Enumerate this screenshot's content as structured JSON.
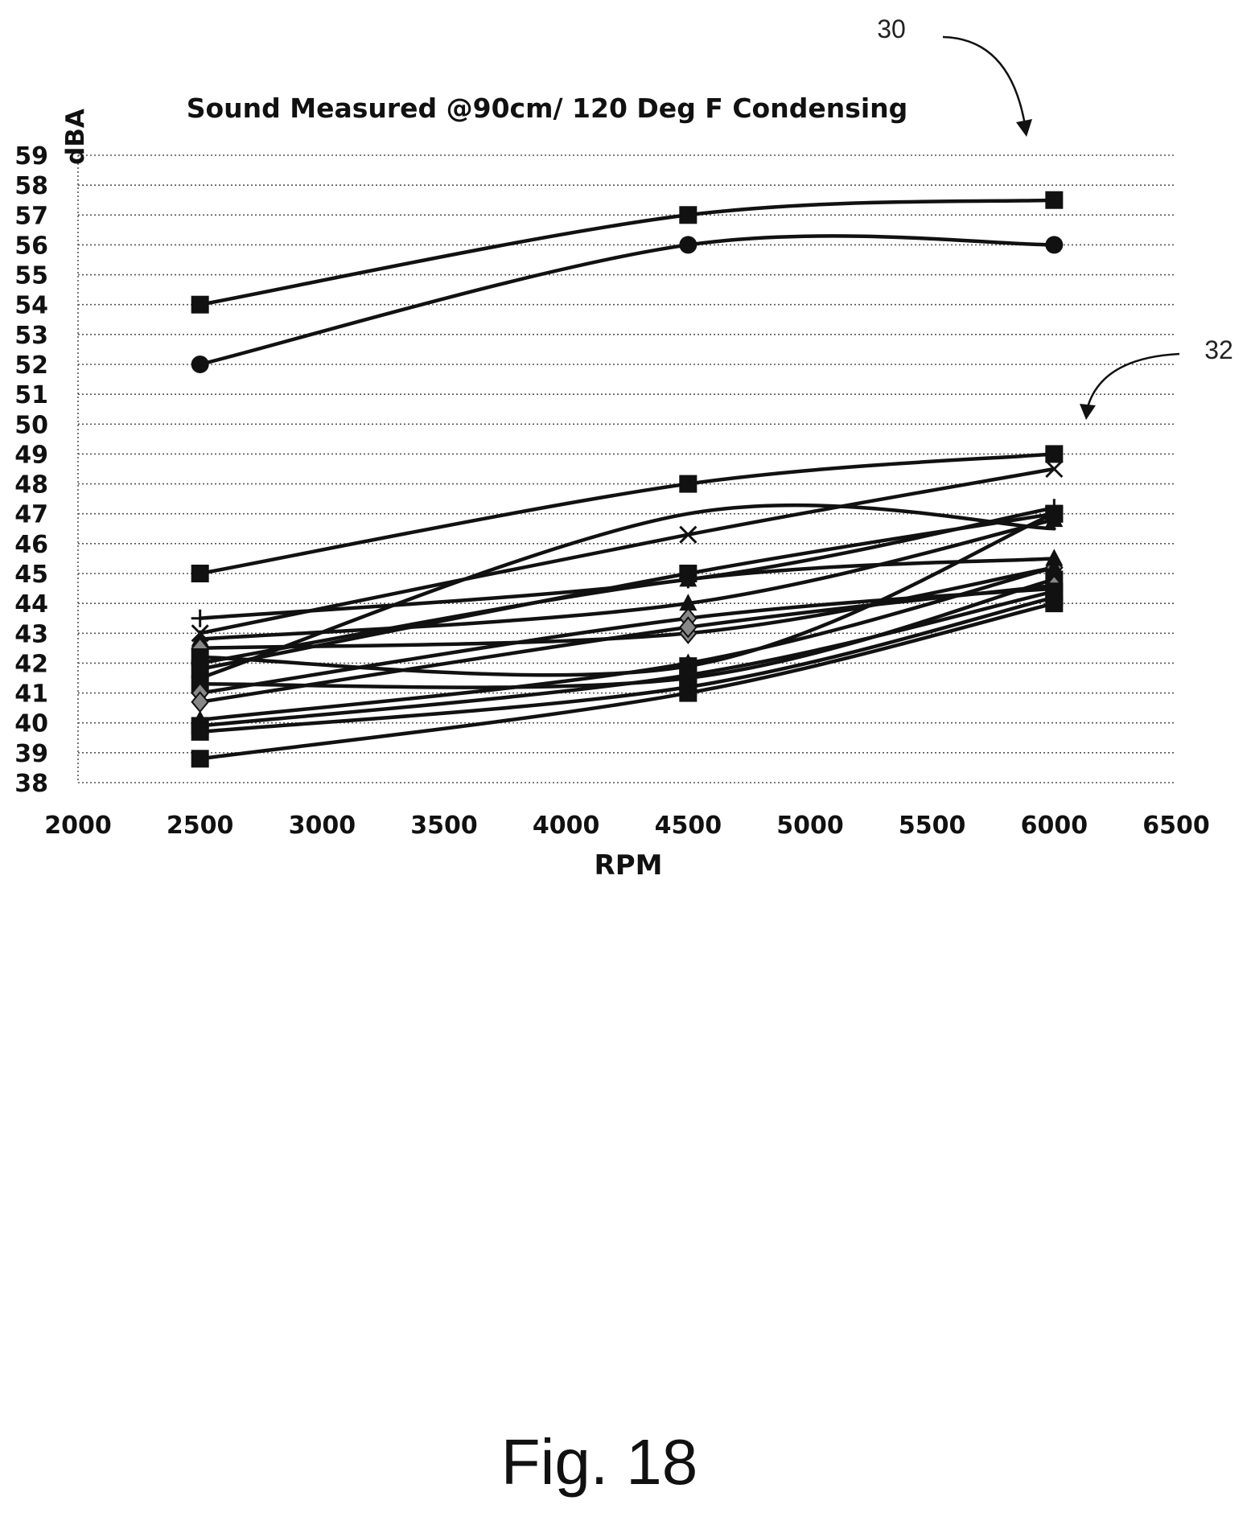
{
  "figure": {
    "caption": "Fig. 18",
    "refs": [
      "30",
      "32"
    ]
  },
  "chart_data": {
    "type": "line",
    "title": "Sound Measured @90cm/ 120 Deg F Condensing",
    "xlabel": "RPM",
    "ylabel": "dBA",
    "xlim": [
      2000,
      6500
    ],
    "ylim": [
      38,
      59
    ],
    "xticks": [
      2000,
      2500,
      3000,
      3500,
      4000,
      4500,
      5000,
      5500,
      6000,
      6500
    ],
    "yticks": [
      38,
      39,
      40,
      41,
      42,
      43,
      44,
      45,
      46,
      47,
      48,
      49,
      50,
      51,
      52,
      53,
      54,
      55,
      56,
      57,
      58,
      59
    ],
    "grid": true,
    "legend": "none",
    "x": [
      2500,
      4500,
      6000
    ],
    "series": [
      {
        "values": [
          54,
          57,
          57.5
        ],
        "marker": "square"
      },
      {
        "values": [
          52,
          56,
          56
        ],
        "marker": "circle"
      },
      {
        "values": [
          45,
          48,
          49
        ],
        "marker": "square"
      },
      {
        "values": [
          43,
          46.3,
          48.5
        ],
        "marker": "x"
      },
      {
        "values": [
          43.5,
          44.8,
          47.2
        ],
        "marker": "plus"
      },
      {
        "values": [
          42.8,
          44,
          46.8
        ],
        "marker": "triangle"
      },
      {
        "values": [
          42.5,
          43,
          45.2
        ],
        "marker": "diamond"
      },
      {
        "values": [
          42.2,
          41.9,
          47
        ],
        "marker": "square"
      },
      {
        "values": [
          42,
          44.8,
          45.5
        ],
        "marker": "triangle"
      },
      {
        "values": [
          41.8,
          45,
          47
        ],
        "marker": "square"
      },
      {
        "values": [
          41.5,
          47,
          46.5
        ],
        "marker": "none"
      },
      {
        "values": [
          41.3,
          41.5,
          44.8
        ],
        "marker": "square"
      },
      {
        "values": [
          41,
          43.5,
          44.5
        ],
        "marker": "diamond"
      },
      {
        "values": [
          40.7,
          43.2,
          44.6
        ],
        "marker": "diamond"
      },
      {
        "values": [
          40.1,
          42,
          45.2
        ],
        "marker": "triangle"
      },
      {
        "values": [
          39.9,
          41.6,
          44.4
        ],
        "marker": "square"
      },
      {
        "values": [
          39.7,
          41.2,
          44.2
        ],
        "marker": "square"
      },
      {
        "values": [
          38.8,
          41,
          44
        ],
        "marker": "square"
      }
    ]
  }
}
